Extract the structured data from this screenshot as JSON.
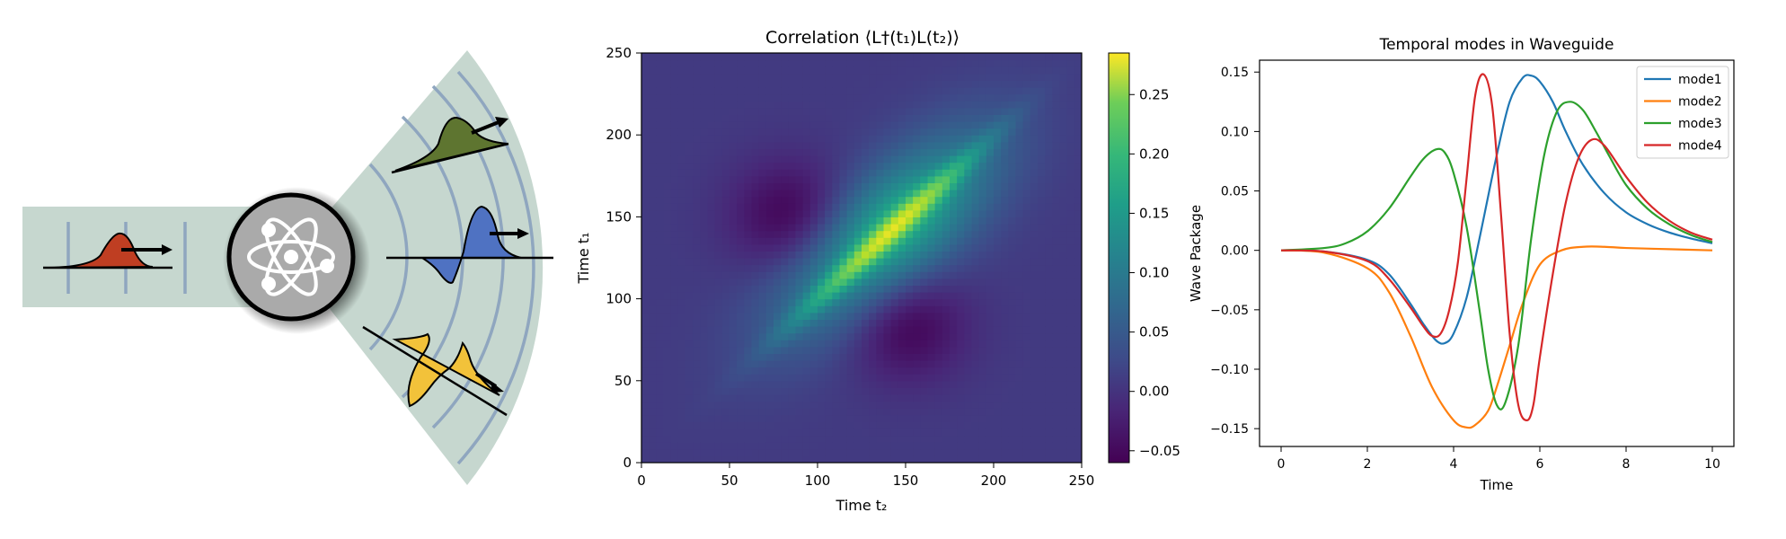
{
  "panel_a": {
    "colors": {
      "waveguide": "#c6d7cf",
      "arc": "#8fa6bf",
      "red_pulse": "#bf3e22",
      "green_pulse": "#5e7530",
      "blue_pulse": "#4f72c2",
      "yellow_pulse": "#f2c23a",
      "atom_fill": "#aaaaaa"
    },
    "icons": [
      "atom-icon",
      "arrow-icon"
    ]
  },
  "chart_data": [
    {
      "type": "heatmap",
      "title": "Correlation ⟨L†(t₁)L(t₂)⟩",
      "xlabel": "Time t₂",
      "ylabel": "Time t₁",
      "xlim": [
        0,
        250
      ],
      "ylim": [
        0,
        250
      ],
      "xticks": [
        0,
        50,
        100,
        150,
        200,
        250
      ],
      "yticks": [
        0,
        50,
        100,
        150,
        200,
        250
      ],
      "colormap": "viridis",
      "colorbar": {
        "range": [
          -0.06,
          0.285
        ],
        "ticks": [
          -0.05,
          0.0,
          0.05,
          0.1,
          0.15,
          0.2,
          0.25
        ],
        "tick_labels": [
          "−0.05",
          "0.00",
          "0.05",
          "0.10",
          "0.15",
          "0.20",
          "0.25"
        ]
      },
      "features": {
        "diagonal_peak": {
          "t": 140,
          "value": 0.28
        },
        "negative_lobes": [
          {
            "t2": 85,
            "t1": 150,
            "value": -0.06
          },
          {
            "t2": 150,
            "t1": 85,
            "value": -0.06
          }
        ]
      }
    },
    {
      "type": "line",
      "title": "Temporal modes in Waveguide",
      "xlabel": "Time",
      "ylabel": "Wave Package",
      "xlim": [
        -0.5,
        10.5
      ],
      "ylim": [
        -0.165,
        0.16
      ],
      "xticks": [
        0,
        2,
        4,
        6,
        8,
        10
      ],
      "yticks": [
        -0.15,
        -0.1,
        -0.05,
        0.0,
        0.05,
        0.1,
        0.15
      ],
      "xtick_labels": [
        "0",
        "2",
        "4",
        "6",
        "8",
        "10"
      ],
      "ytick_labels": [
        "−0.15",
        "−0.10",
        "−0.05",
        "0.00",
        "0.05",
        "0.10",
        "0.15"
      ],
      "legend_position": "top-right",
      "series": [
        {
          "name": "mode1",
          "color": "#1f77b4",
          "x": [
            0,
            1,
            2,
            2.5,
            3,
            3.3,
            3.6,
            3.8,
            4.0,
            4.3,
            4.6,
            5.0,
            5.3,
            5.6,
            5.8,
            6.0,
            6.3,
            6.6,
            7.0,
            7.5,
            8,
            8.5,
            9,
            9.5,
            10
          ],
          "y": [
            0,
            -0.001,
            -0.008,
            -0.02,
            -0.045,
            -0.062,
            -0.076,
            -0.078,
            -0.07,
            -0.04,
            0.01,
            0.08,
            0.125,
            0.145,
            0.147,
            0.142,
            0.125,
            0.1,
            0.072,
            0.048,
            0.032,
            0.022,
            0.015,
            0.01,
            0.006
          ]
        },
        {
          "name": "mode2",
          "color": "#ff7f0e",
          "x": [
            0,
            1,
            2,
            2.5,
            3,
            3.5,
            4,
            4.3,
            4.5,
            4.8,
            5.0,
            5.3,
            5.6,
            6,
            6.5,
            7,
            7.5,
            8,
            9,
            10
          ],
          "y": [
            0,
            -0.002,
            -0.015,
            -0.035,
            -0.072,
            -0.115,
            -0.143,
            -0.149,
            -0.147,
            -0.135,
            -0.115,
            -0.08,
            -0.045,
            -0.012,
            0.0,
            0.003,
            0.003,
            0.002,
            0.001,
            0.0
          ]
        },
        {
          "name": "mode3",
          "color": "#2ca02c",
          "x": [
            0,
            1,
            1.5,
            2,
            2.5,
            3,
            3.3,
            3.6,
            3.8,
            4.0,
            4.3,
            4.6,
            4.8,
            5.0,
            5.2,
            5.5,
            5.8,
            6.1,
            6.4,
            6.7,
            7.0,
            7.3,
            7.6,
            8,
            8.5,
            9,
            9.5,
            10
          ],
          "y": [
            0,
            0.002,
            0.006,
            0.016,
            0.035,
            0.062,
            0.077,
            0.085,
            0.082,
            0.065,
            0.02,
            -0.05,
            -0.1,
            -0.13,
            -0.128,
            -0.08,
            0.01,
            0.08,
            0.117,
            0.125,
            0.118,
            0.1,
            0.08,
            0.055,
            0.035,
            0.022,
            0.013,
            0.007
          ]
        },
        {
          "name": "mode4",
          "color": "#d62728",
          "x": [
            0,
            1,
            2,
            2.5,
            3,
            3.3,
            3.5,
            3.7,
            3.9,
            4.1,
            4.3,
            4.5,
            4.7,
            4.9,
            5.1,
            5.3,
            5.5,
            5.7,
            5.85,
            6.0,
            6.3,
            6.6,
            6.9,
            7.2,
            7.5,
            8,
            8.5,
            9,
            9.5,
            10
          ],
          "y": [
            0,
            -0.001,
            -0.009,
            -0.024,
            -0.048,
            -0.064,
            -0.072,
            -0.07,
            -0.05,
            -0.01,
            0.06,
            0.13,
            0.148,
            0.12,
            0.03,
            -0.07,
            -0.13,
            -0.143,
            -0.13,
            -0.09,
            -0.02,
            0.04,
            0.078,
            0.093,
            0.088,
            0.062,
            0.04,
            0.025,
            0.015,
            0.009
          ]
        }
      ]
    }
  ]
}
